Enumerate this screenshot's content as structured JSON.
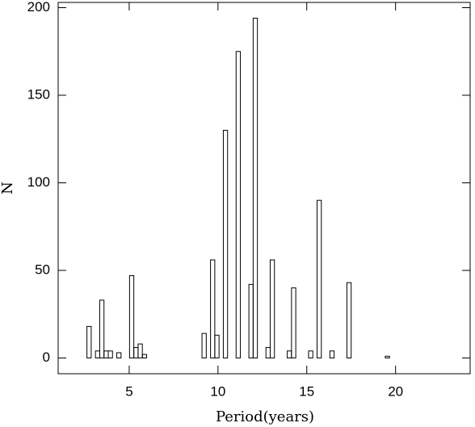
{
  "chart_data": {
    "type": "histogram",
    "x_label": "Period(years)",
    "y_label": "N",
    "color": "#000000",
    "bins": [
      1.9,
      2.14,
      2.38,
      2.62,
      2.86,
      3.1,
      3.34,
      3.58,
      3.82,
      4.06,
      4.3,
      4.54,
      4.78,
      5.02,
      5.26,
      5.5,
      5.74,
      5.98,
      6.22,
      6.46,
      6.7,
      6.94,
      7.18,
      7.42,
      7.66,
      7.9,
      8.14,
      8.38,
      8.62,
      8.86,
      9.1,
      9.34,
      9.58,
      9.82,
      10.06,
      10.3,
      10.54,
      10.78,
      11.02,
      11.26,
      11.5,
      11.74,
      11.98,
      12.22,
      12.46,
      12.7,
      12.94,
      13.18,
      13.42,
      13.66,
      13.9,
      14.14,
      14.38,
      14.62,
      14.86,
      15.1,
      15.34,
      15.58,
      15.82,
      16.06,
      16.3,
      16.54,
      16.78,
      17.02,
      17.26,
      17.5,
      17.74,
      17.98,
      18.22,
      18.46,
      18.7,
      18.94,
      19.18,
      19.42,
      19.66,
      19.9,
      20.14,
      20.38,
      20.62,
      20.86,
      21.1,
      21.34,
      21.58,
      21.82,
      22.06,
      22.3,
      22.54,
      22.78,
      23.02,
      23.26,
      23.5
    ],
    "counts": [
      0,
      0,
      0,
      18,
      0,
      4,
      33,
      4,
      4,
      0,
      3,
      0,
      0,
      47,
      6,
      8,
      2,
      0,
      0,
      0,
      0,
      0,
      0,
      0,
      0,
      0,
      0,
      0,
      0,
      0,
      14,
      0,
      56,
      13,
      0,
      130,
      0,
      0,
      175,
      0,
      0,
      42,
      194,
      0,
      0,
      6,
      56,
      0,
      0,
      0,
      4,
      40,
      0,
      0,
      0,
      4,
      0,
      90,
      0,
      0,
      4,
      0,
      0,
      0,
      43,
      0,
      0,
      0,
      0,
      0,
      0,
      0,
      0,
      1,
      0,
      0,
      0,
      0,
      0,
      0,
      0,
      0,
      0,
      0,
      0,
      0,
      0,
      0,
      0,
      0
    ],
    "xlim": [
      1,
      24.2
    ],
    "ylim": [
      -9,
      203
    ],
    "xticks": [
      5,
      10,
      15,
      20
    ],
    "yticks": [
      0,
      50,
      100,
      150,
      200
    ]
  }
}
